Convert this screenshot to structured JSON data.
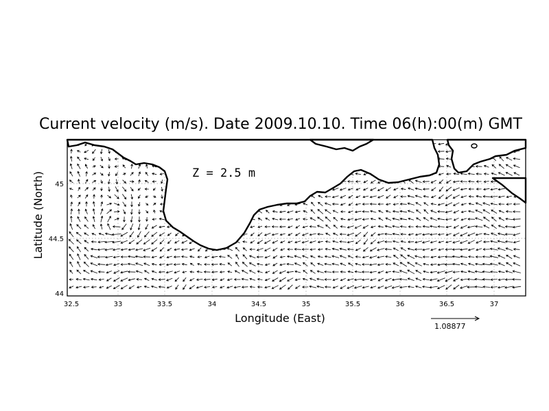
{
  "title": "Current velocity (m/s). Date 2009.10.10. Time 06(h):00(m) GMT",
  "depth_label": "Z = 2.5 m",
  "x_axis_label": "Longitude (East)",
  "y_axis_label": "Latitude (North)",
  "x_ticks": [
    "32.5",
    "33",
    "33.5",
    "34",
    "34.5",
    "35",
    "35.5",
    "36",
    "36.5",
    "37"
  ],
  "y_ticks": [
    "44",
    "44.5",
    "45"
  ],
  "scale_vector_label": "1.08877",
  "map_extent": {
    "lon_range": [
      32.5,
      37.3
    ],
    "lat_range": [
      43.98,
      45.42
    ]
  },
  "colors": {
    "coastline": "#000000",
    "grid": "#9a9a9a",
    "arrows": "#000000"
  },
  "icons": {
    "vectors": "arrow-field",
    "scale": "reference-arrow"
  }
}
